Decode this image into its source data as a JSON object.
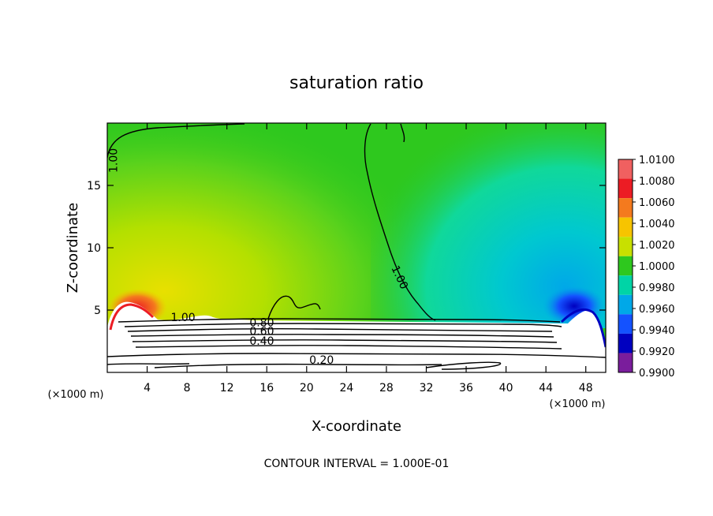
{
  "chart_data": {
    "type": "heatmap",
    "title": "saturation ratio",
    "xlabel": "X-coordinate",
    "ylabel": "Z-coordinate",
    "x_unit_left": "(×1000 m)",
    "x_unit_right": "(×1000 m)",
    "footer": "CONTOUR INTERVAL = 1.000E-01",
    "xlim": [
      0,
      50
    ],
    "ylim": [
      0,
      20
    ],
    "x_ticks": [
      4,
      8,
      12,
      16,
      20,
      24,
      28,
      32,
      36,
      40,
      44,
      48
    ],
    "y_ticks": [
      5,
      10,
      15
    ],
    "colorbar": {
      "levels": [
        1.01,
        1.008,
        1.006,
        1.004,
        1.002,
        1.0,
        0.998,
        0.996,
        0.994,
        0.992,
        0.99
      ],
      "labels": [
        "1.0100",
        "1.0080",
        "1.0060",
        "1.0040",
        "1.0020",
        "1.0000",
        "0.9980",
        "0.9960",
        "0.9940",
        "0.9920",
        "0.9900"
      ],
      "colors": [
        "#f06060",
        "#ec1c24",
        "#f47a1e",
        "#f7c400",
        "#c8e000",
        "#2ec81e",
        "#00d4a6",
        "#00a8e8",
        "#1452ff",
        "#0000c0",
        "#7a1d9c"
      ]
    },
    "contour_labels": [
      {
        "text": "1.00",
        "x": 1.0,
        "z": 17.0,
        "rotate": -90
      },
      {
        "text": "1.00",
        "x": 29.0,
        "z": 7.5,
        "rotate": 65
      },
      {
        "text": "1.00",
        "x": 7.6,
        "z": 4.1,
        "rotate": 0
      },
      {
        "text": "0.80",
        "x": 15.5,
        "z": 3.7,
        "rotate": 0
      },
      {
        "text": "0.60",
        "x": 15.5,
        "z": 3.0,
        "rotate": 0
      },
      {
        "text": "0.40",
        "x": 15.5,
        "z": 2.2,
        "rotate": 0
      },
      {
        "text": "0.20",
        "x": 21.5,
        "z": 0.7,
        "rotate": 0
      }
    ]
  }
}
